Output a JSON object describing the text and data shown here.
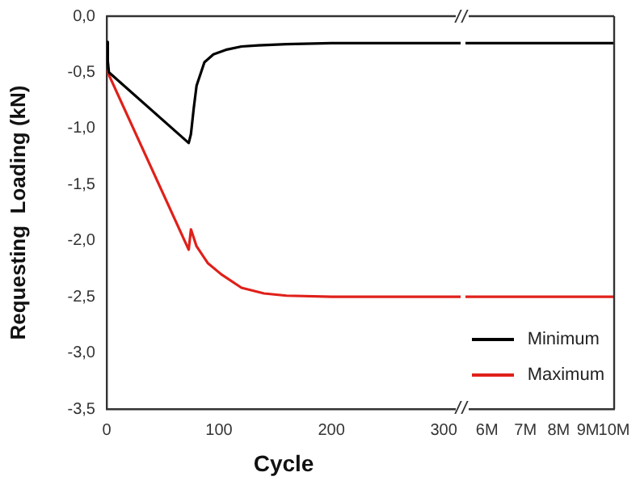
{
  "chart_data": [
    {
      "type": "line",
      "xlabel": "Cycle",
      "ylabel": "Requesting  Loading (kN)",
      "xlim": [
        0,
        315
      ],
      "xticks": [
        0,
        100,
        200,
        300
      ],
      "ylim": [
        -3.5,
        0
      ],
      "yticks": [
        {
          "value": -3.5,
          "label": "-3,5"
        },
        {
          "value": -3,
          "label": "-3,0"
        },
        {
          "value": -2.5,
          "label": "-2,5"
        },
        {
          "value": -2,
          "label": "-2,0"
        },
        {
          "value": -1.5,
          "label": "-1,5"
        },
        {
          "value": -1,
          "label": "-1,0"
        },
        {
          "value": -0.5,
          "label": "-0,5"
        },
        {
          "value": 0,
          "label": "0,0"
        }
      ],
      "grid": false,
      "legend": false,
      "marker": "none",
      "line_style": "solid",
      "series": [
        {
          "color": "#000000",
          "x": [
            0,
            1,
            2,
            73,
            75,
            77.5,
            80,
            87,
            95,
            106,
            120,
            135,
            160,
            200,
            250,
            315
          ],
          "values": [
            -0.23,
            -0.4,
            -0.5,
            -1.13,
            -1.05,
            -0.82,
            -0.62,
            -0.41,
            -0.34,
            -0.3,
            -0.27,
            -0.26,
            -0.25,
            -0.24,
            -0.24,
            -0.24
          ]
        },
        {
          "color": "#e0201a",
          "x": [
            0,
            73,
            75,
            80,
            90,
            102,
            120,
            140,
            160,
            200,
            250,
            315
          ],
          "values": [
            -0.48,
            -2.08,
            -1.9,
            -2.05,
            -2.2,
            -2.3,
            -2.42,
            -2.47,
            -2.49,
            -2.5,
            -2.5,
            -2.5
          ]
        }
      ]
    },
    {
      "type": "line",
      "log": "x",
      "xlim": [
        5500000,
        10000000
      ],
      "xticks": [
        {
          "value": 6000000,
          "label": "6M"
        },
        {
          "value": 7000000,
          "label": "7M"
        },
        {
          "value": 8000000,
          "label": "8M"
        },
        {
          "value": 9000000,
          "label": "9M"
        },
        {
          "value": 10000000,
          "label": "10M"
        }
      ],
      "ylim": [
        -3.5,
        0
      ],
      "tick_labels": "x",
      "grid": false,
      "legend": "bottom right",
      "marker": "none",
      "line_style": "solid",
      "series": [
        {
          "name": "Minimum",
          "color": "#000000",
          "x": [
            5500000,
            10000000
          ],
          "values": [
            -0.24,
            -0.24
          ]
        },
        {
          "name": "Maximum",
          "color": "#e0201a",
          "x": [
            5500000,
            10000000
          ],
          "values": [
            -2.5,
            -2.5
          ]
        }
      ]
    }
  ]
}
